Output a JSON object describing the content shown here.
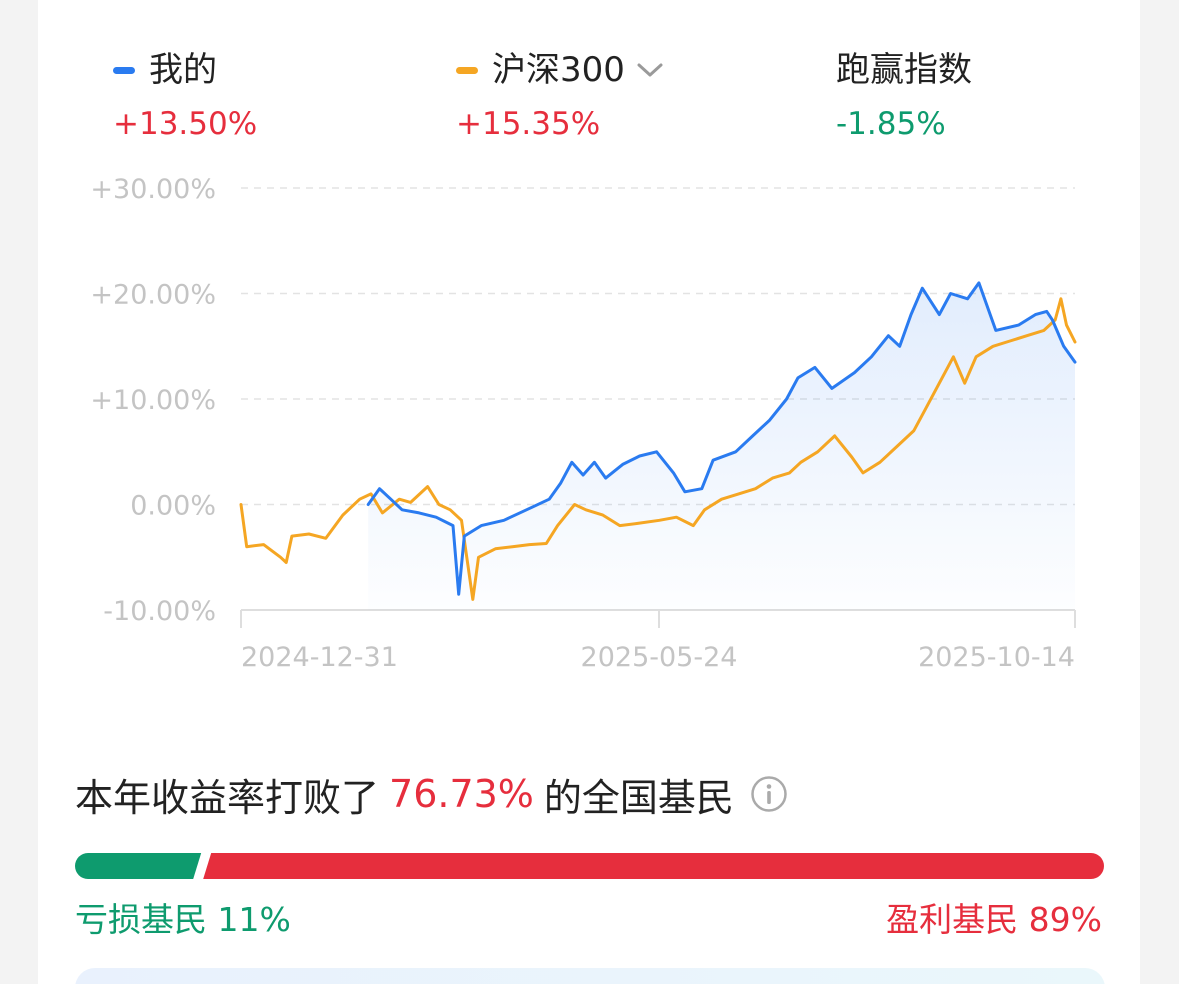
{
  "legend": [
    {
      "label": "我的",
      "value": "+13.50%",
      "color": "#2a7bf0",
      "value_tone": "pos"
    },
    {
      "label": "沪深300",
      "value": "+15.35%",
      "color": "#f5a623",
      "value_tone": "pos",
      "dropdown_icon": "chevron-down-icon"
    },
    {
      "label": "跑赢指数",
      "value": "-1.85%",
      "value_tone": "neg"
    }
  ],
  "chart_data": {
    "type": "line",
    "ylim": [
      -10,
      30
    ],
    "yticks": [
      "+30.00%",
      "+20.00%",
      "+10.00%",
      "0.00%",
      "-10.00%"
    ],
    "ytick_values": [
      30,
      20,
      10,
      0,
      -10
    ],
    "xticks": [
      "2024-12-31",
      "2025-05-24",
      "2025-10-14"
    ],
    "grid": true,
    "series": [
      {
        "name": "我的",
        "color": "#2a7bf0",
        "area_fill": true,
        "points": [
          [
            "2025-02-14",
            0.0
          ],
          [
            "2025-02-18",
            1.5
          ],
          [
            "2025-02-22",
            0.5
          ],
          [
            "2025-02-26",
            -0.5
          ],
          [
            "2025-03-04",
            -0.8
          ],
          [
            "2025-03-10",
            -1.2
          ],
          [
            "2025-03-16",
            -2.0
          ],
          [
            "2025-03-18",
            -8.5
          ],
          [
            "2025-03-20",
            -3.0
          ],
          [
            "2025-03-26",
            -2.0
          ],
          [
            "2025-04-03",
            -1.5
          ],
          [
            "2025-04-11",
            -0.5
          ],
          [
            "2025-04-19",
            0.5
          ],
          [
            "2025-04-23",
            2.0
          ],
          [
            "2025-04-27",
            4.0
          ],
          [
            "2025-05-01",
            2.8
          ],
          [
            "2025-05-05",
            4.0
          ],
          [
            "2025-05-09",
            2.5
          ],
          [
            "2025-05-15",
            3.8
          ],
          [
            "2025-05-21",
            4.6
          ],
          [
            "2025-05-27",
            5.0
          ],
          [
            "2025-06-02",
            3.0
          ],
          [
            "2025-06-06",
            1.2
          ],
          [
            "2025-06-12",
            1.5
          ],
          [
            "2025-06-16",
            4.2
          ],
          [
            "2025-06-24",
            5.0
          ],
          [
            "2025-06-30",
            6.5
          ],
          [
            "2025-07-06",
            8.0
          ],
          [
            "2025-07-12",
            10.0
          ],
          [
            "2025-07-16",
            12.0
          ],
          [
            "2025-07-22",
            13.0
          ],
          [
            "2025-07-28",
            11.0
          ],
          [
            "2025-08-05",
            12.5
          ],
          [
            "2025-08-11",
            14.0
          ],
          [
            "2025-08-17",
            16.0
          ],
          [
            "2025-08-21",
            15.0
          ],
          [
            "2025-08-25",
            18.0
          ],
          [
            "2025-08-29",
            20.5
          ],
          [
            "2025-09-04",
            18.0
          ],
          [
            "2025-09-08",
            20.0
          ],
          [
            "2025-09-14",
            19.5
          ],
          [
            "2025-09-18",
            21.0
          ],
          [
            "2025-09-24",
            16.5
          ],
          [
            "2025-10-02",
            17.0
          ],
          [
            "2025-10-08",
            18.0
          ],
          [
            "2025-10-12",
            18.3
          ],
          [
            "2025-10-14",
            17.5
          ],
          [
            "2025-10-18",
            15.0
          ],
          [
            "2025-10-22",
            13.5
          ]
        ]
      },
      {
        "name": "沪深300",
        "color": "#f5a623",
        "area_fill": false,
        "points": [
          [
            "2024-12-31",
            0.0
          ],
          [
            "2025-01-02",
            -4.0
          ],
          [
            "2025-01-08",
            -3.8
          ],
          [
            "2025-01-14",
            -5.0
          ],
          [
            "2025-01-16",
            -5.5
          ],
          [
            "2025-01-18",
            -3.0
          ],
          [
            "2025-01-24",
            -2.8
          ],
          [
            "2025-01-30",
            -3.2
          ],
          [
            "2025-02-05",
            -1.0
          ],
          [
            "2025-02-11",
            0.5
          ],
          [
            "2025-02-15",
            1.0
          ],
          [
            "2025-02-19",
            -0.8
          ],
          [
            "2025-02-25",
            0.5
          ],
          [
            "2025-03-01",
            0.2
          ],
          [
            "2025-03-07",
            1.7
          ],
          [
            "2025-03-11",
            0.0
          ],
          [
            "2025-03-15",
            -0.5
          ],
          [
            "2025-03-19",
            -1.5
          ],
          [
            "2025-03-23",
            -9.0
          ],
          [
            "2025-03-25",
            -5.0
          ],
          [
            "2025-03-31",
            -4.2
          ],
          [
            "2025-04-06",
            -4.0
          ],
          [
            "2025-04-12",
            -3.8
          ],
          [
            "2025-04-18",
            -3.7
          ],
          [
            "2025-04-22",
            -2.0
          ],
          [
            "2025-04-28",
            0.0
          ],
          [
            "2025-05-02",
            -0.5
          ],
          [
            "2025-05-08",
            -1.0
          ],
          [
            "2025-05-14",
            -2.0
          ],
          [
            "2025-05-20",
            -1.8
          ],
          [
            "2025-05-28",
            -1.5
          ],
          [
            "2025-06-03",
            -1.2
          ],
          [
            "2025-06-09",
            -2.0
          ],
          [
            "2025-06-13",
            -0.5
          ],
          [
            "2025-06-19",
            0.5
          ],
          [
            "2025-06-25",
            1.0
          ],
          [
            "2025-07-01",
            1.5
          ],
          [
            "2025-07-07",
            2.5
          ],
          [
            "2025-07-13",
            3.0
          ],
          [
            "2025-07-17",
            4.0
          ],
          [
            "2025-07-23",
            5.0
          ],
          [
            "2025-07-29",
            6.5
          ],
          [
            "2025-08-04",
            4.5
          ],
          [
            "2025-08-08",
            3.0
          ],
          [
            "2025-08-14",
            4.0
          ],
          [
            "2025-08-20",
            5.5
          ],
          [
            "2025-08-26",
            7.0
          ],
          [
            "2025-08-30",
            9.0
          ],
          [
            "2025-09-05",
            12.0
          ],
          [
            "2025-09-09",
            14.0
          ],
          [
            "2025-09-13",
            11.5
          ],
          [
            "2025-09-17",
            14.0
          ],
          [
            "2025-09-23",
            15.0
          ],
          [
            "2025-09-29",
            15.5
          ],
          [
            "2025-10-05",
            16.0
          ],
          [
            "2025-10-11",
            16.5
          ],
          [
            "2025-10-15",
            17.5
          ],
          [
            "2025-10-17",
            19.5
          ],
          [
            "2025-10-19",
            17.0
          ],
          [
            "2025-10-22",
            15.4
          ]
        ]
      }
    ]
  },
  "rank": {
    "prefix": "本年收益率打败了",
    "value": "76.73%",
    "suffix": "的全国基民",
    "info_icon": "info-icon"
  },
  "distribution": {
    "loss_label": "亏损基民 11%",
    "win_label": "盈利基民 89%",
    "loss_fraction": 0.11,
    "loss_color": "#0e9b6e",
    "win_color": "#e62e3d"
  }
}
